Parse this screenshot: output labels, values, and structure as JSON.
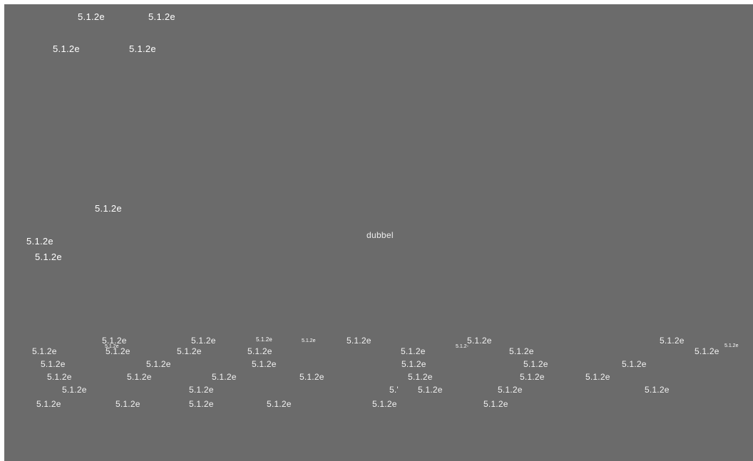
{
  "canvas": {
    "background": "#6b6b6b",
    "text_color": "#ffffff"
  },
  "labels": {
    "version": "5.1.2e",
    "fragment_a": "5.1.2-",
    "fragment_b": "5.'",
    "word": "dubbel"
  }
}
